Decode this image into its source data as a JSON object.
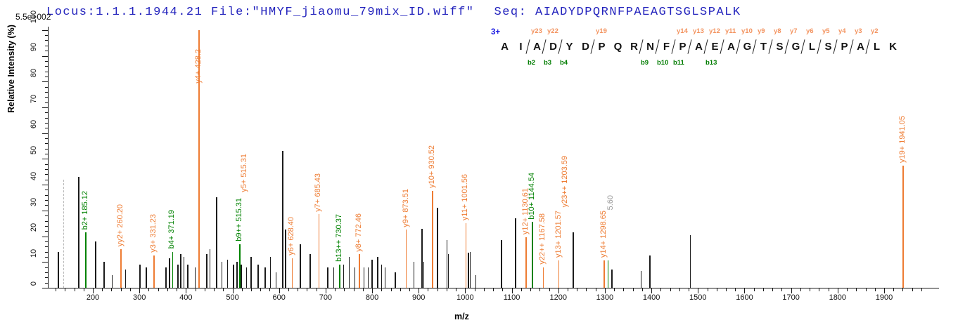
{
  "header": {
    "scale_label": "5.5e+002",
    "locus_file": "Locus:1.1.1.1944.21 File:\"HMYF_jiaomu_79mix_ID.wiff\"",
    "seq": "Seq: AIADYDPQRNFPAEAGTSGLSPALK"
  },
  "sequence_panel": {
    "charge_state": "3+",
    "residues": "AIADYDPQRNFPAEAGTSGLSPALK",
    "fragment_marks": [
      {
        "after": 2,
        "y": "y23",
        "b": "b2"
      },
      {
        "after": 3,
        "y": "y22",
        "b": "b3"
      },
      {
        "after": 4,
        "b": "b4"
      },
      {
        "after": 6,
        "y": "y19"
      },
      {
        "after": 9,
        "b": "b9"
      },
      {
        "after": 10,
        "b": "b10"
      },
      {
        "after": 11,
        "y": "y14",
        "b": "b11"
      },
      {
        "after": 12,
        "y": "y13"
      },
      {
        "after": 13,
        "y": "y12",
        "b": "b13"
      },
      {
        "after": 14,
        "y": "y11"
      },
      {
        "after": 15,
        "y": "y10"
      },
      {
        "after": 16,
        "y": "y9"
      },
      {
        "after": 17,
        "y": "y8"
      },
      {
        "after": 18,
        "y": "y7"
      },
      {
        "after": 19,
        "y": "y6"
      },
      {
        "after": 20,
        "y": "y5"
      },
      {
        "after": 21,
        "y": "y4"
      },
      {
        "after": 22,
        "y": "y3"
      },
      {
        "after": 23,
        "y": "y2"
      }
    ]
  },
  "chart_data": {
    "type": "bar",
    "subtype": "ms2-fragment-spectrum",
    "xlabel": "m/z",
    "ylabel": "Relative  Intensity (%)",
    "scale_label": "5.5e+002",
    "xlim": [
      103,
      2013
    ],
    "ylim": [
      0,
      100
    ],
    "x_major_ticks": [
      200,
      300,
      400,
      500,
      600,
      700,
      800,
      900,
      1000,
      1100,
      1200,
      1300,
      1400,
      1500,
      1600,
      1700,
      1800,
      1900
    ],
    "x_minor_step": 20,
    "y_major_ticks": [
      0,
      10,
      20,
      30,
      40,
      50,
      60,
      70,
      80,
      90,
      100
    ],
    "y_minor_step": 2,
    "grid": false,
    "legend": false,
    "colors": {
      "y_ion": "#ee7c33",
      "b_ion": "#008200",
      "unassigned": "#1b1b1b",
      "precursor_dash": "#b9b9b9",
      "gray_label": "#9a9a9a"
    },
    "peaks": [
      {
        "mz": 126,
        "pct": 14,
        "type": "black"
      },
      {
        "mz": 137,
        "pct": 42,
        "type": "precursor"
      },
      {
        "mz": 170,
        "pct": 43,
        "type": "black",
        "w": 2
      },
      {
        "mz": 185.12,
        "pct": 21.5,
        "type": "b",
        "labels": [
          {
            "text": "b2+ 185.12"
          }
        ]
      },
      {
        "mz": 206,
        "pct": 18,
        "type": "black"
      },
      {
        "mz": 224,
        "pct": 10,
        "type": "black"
      },
      {
        "mz": 242,
        "pct": 5,
        "type": "black"
      },
      {
        "mz": 260.2,
        "pct": 15,
        "type": "y",
        "w": 2,
        "labels": [
          {
            "text": "yy2+ 260.20"
          }
        ]
      },
      {
        "mz": 270,
        "pct": 7,
        "type": "black"
      },
      {
        "mz": 301,
        "pct": 9,
        "type": "black"
      },
      {
        "mz": 315,
        "pct": 8,
        "type": "black"
      },
      {
        "mz": 331.23,
        "pct": 12.5,
        "type": "y",
        "labels": [
          {
            "text": "y3+ 331.23"
          }
        ]
      },
      {
        "mz": 357,
        "pct": 8,
        "type": "black"
      },
      {
        "mz": 365,
        "pct": 11.5,
        "type": "black"
      },
      {
        "mz": 371.19,
        "pct": 14,
        "type": "b",
        "labels": [
          {
            "text": "b4+ 371.19"
          }
        ]
      },
      {
        "mz": 383,
        "pct": 9,
        "type": "black"
      },
      {
        "mz": 389,
        "pct": 13,
        "type": "black"
      },
      {
        "mz": 396,
        "pct": 12,
        "type": "black"
      },
      {
        "mz": 404,
        "pct": 9,
        "type": "black"
      },
      {
        "mz": 420,
        "pct": 8,
        "type": "black"
      },
      {
        "mz": 428.2,
        "pct": 100,
        "type": "y",
        "w": 2.5,
        "labels": [
          {
            "text": "y4+ 428.2",
            "dy": 80
          }
        ]
      },
      {
        "mz": 445,
        "pct": 13,
        "type": "black"
      },
      {
        "mz": 452,
        "pct": 15,
        "type": "black"
      },
      {
        "mz": 466,
        "pct": 35,
        "type": "black",
        "w": 2
      },
      {
        "mz": 477,
        "pct": 10,
        "type": "black"
      },
      {
        "mz": 489,
        "pct": 11,
        "type": "black"
      },
      {
        "mz": 502,
        "pct": 9,
        "type": "black"
      },
      {
        "mz": 510,
        "pct": 10,
        "type": "black"
      },
      {
        "mz": 515.31,
        "pct": 17,
        "type": "b",
        "w": 2,
        "labels": [
          {
            "text": "b9++ 515.31"
          },
          {
            "text": "y5+ 515.31",
            "color": "#ee7c33",
            "dx": 7,
            "dy": -70
          }
        ]
      },
      {
        "mz": 519,
        "pct": 9,
        "type": "black"
      },
      {
        "mz": 530,
        "pct": 8,
        "type": "black"
      },
      {
        "mz": 540,
        "pct": 12,
        "type": "black"
      },
      {
        "mz": 555,
        "pct": 9,
        "type": "black"
      },
      {
        "mz": 570,
        "pct": 8,
        "type": "black"
      },
      {
        "mz": 582,
        "pct": 12,
        "type": "black"
      },
      {
        "mz": 594,
        "pct": 6,
        "type": "black"
      },
      {
        "mz": 608,
        "pct": 53,
        "type": "black"
      },
      {
        "mz": 614,
        "pct": 22.5,
        "type": "black"
      },
      {
        "mz": 628.4,
        "pct": 11.5,
        "type": "y",
        "labels": [
          {
            "text": "y6+ 628.40"
          }
        ]
      },
      {
        "mz": 646,
        "pct": 17,
        "type": "black"
      },
      {
        "mz": 667,
        "pct": 13,
        "type": "black"
      },
      {
        "mz": 685.43,
        "pct": 28.5,
        "type": "y",
        "labels": [
          {
            "text": "y7+ 685.43"
          }
        ]
      },
      {
        "mz": 705,
        "pct": 8,
        "type": "black"
      },
      {
        "mz": 718,
        "pct": 8,
        "type": "black"
      },
      {
        "mz": 730.37,
        "pct": 9,
        "type": "b",
        "labels": [
          {
            "text": "b13++ 730.37"
          }
        ]
      },
      {
        "mz": 739,
        "pct": 9,
        "type": "black"
      },
      {
        "mz": 751,
        "pct": 12,
        "type": "black"
      },
      {
        "mz": 763,
        "pct": 8,
        "type": "black"
      },
      {
        "mz": 772.46,
        "pct": 13,
        "type": "y",
        "labels": [
          {
            "text": "y8+ 772.46"
          }
        ]
      },
      {
        "mz": 783,
        "pct": 8,
        "type": "black"
      },
      {
        "mz": 792,
        "pct": 8,
        "type": "black"
      },
      {
        "mz": 800,
        "pct": 11,
        "type": "black"
      },
      {
        "mz": 812,
        "pct": 12,
        "type": "black"
      },
      {
        "mz": 820,
        "pct": 9,
        "type": "black"
      },
      {
        "mz": 828,
        "pct": 8,
        "type": "black"
      },
      {
        "mz": 850,
        "pct": 6,
        "type": "black"
      },
      {
        "mz": 873.51,
        "pct": 22.5,
        "type": "y",
        "labels": [
          {
            "text": "y9+ 873.51"
          }
        ]
      },
      {
        "mz": 890,
        "pct": 10,
        "type": "black"
      },
      {
        "mz": 907,
        "pct": 23,
        "type": "black"
      },
      {
        "mz": 911,
        "pct": 10,
        "type": "black"
      },
      {
        "mz": 930.52,
        "pct": 37.5,
        "type": "y",
        "w": 2,
        "labels": [
          {
            "text": "y10+ 930.52"
          }
        ]
      },
      {
        "mz": 940,
        "pct": 31,
        "type": "black",
        "w": 2
      },
      {
        "mz": 961,
        "pct": 18.5,
        "type": "black"
      },
      {
        "mz": 964,
        "pct": 13,
        "type": "black"
      },
      {
        "mz": 1001.56,
        "pct": 25,
        "type": "y",
        "labels": [
          {
            "text": "y11+ 1001.56"
          }
        ]
      },
      {
        "mz": 1007,
        "pct": 13.5,
        "type": "black"
      },
      {
        "mz": 1011,
        "pct": 14,
        "type": "black"
      },
      {
        "mz": 1023,
        "pct": 5,
        "type": "black"
      },
      {
        "mz": 1078,
        "pct": 18.5,
        "type": "black"
      },
      {
        "mz": 1108,
        "pct": 27,
        "type": "black"
      },
      {
        "mz": 1130.61,
        "pct": 19.5,
        "type": "y",
        "labels": [
          {
            "text": "y12+ 1130.61"
          }
        ]
      },
      {
        "mz": 1144.54,
        "pct": 25.5,
        "type": "b",
        "labels": [
          {
            "text": "b10+ 1144.54"
          }
        ]
      },
      {
        "mz": 1167.58,
        "pct": 8,
        "type": "y",
        "labels": [
          {
            "text": "y22++ 1167.58"
          }
        ]
      },
      {
        "mz": 1201.57,
        "pct": 10.5,
        "type": "y",
        "labels": [
          {
            "text": "y13+ 1201.57"
          },
          {
            "text": "y23++ 1203.59",
            "dx": 9,
            "dy": -72
          }
        ]
      },
      {
        "mz": 1232,
        "pct": 21.5,
        "type": "black"
      },
      {
        "mz": 1298.65,
        "pct": 10.5,
        "type": "y",
        "labels": [
          {
            "text": "y14+ 1298.65"
          },
          {
            "text": "5.60",
            "color": "#9a9a9a",
            "dx": 10,
            "dy": -68
          }
        ]
      },
      {
        "mz": 1307,
        "pct": 10.5,
        "type": "b"
      },
      {
        "mz": 1315,
        "pct": 7,
        "type": "black"
      },
      {
        "mz": 1378,
        "pct": 6.5,
        "type": "black"
      },
      {
        "mz": 1397,
        "pct": 12.5,
        "type": "black"
      },
      {
        "mz": 1484,
        "pct": 20.5,
        "type": "black"
      },
      {
        "mz": 1941.05,
        "pct": 47.5,
        "type": "y",
        "w": 2,
        "labels": [
          {
            "text": "y19+ 1941.05"
          }
        ]
      }
    ]
  }
}
